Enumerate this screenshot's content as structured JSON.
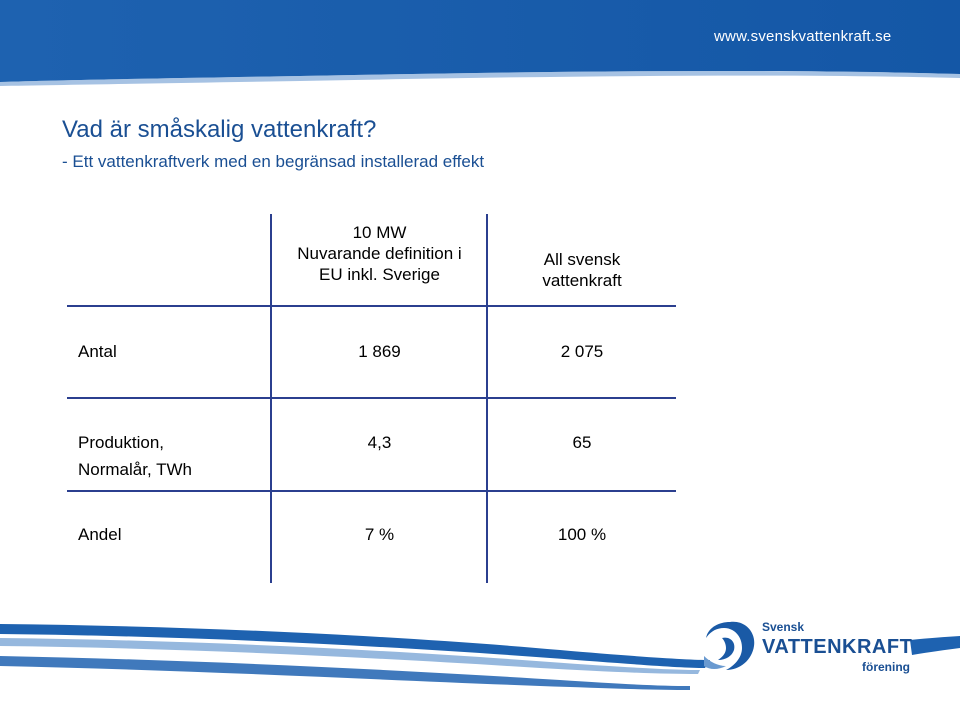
{
  "header": {
    "url": "www.svenskvattenkraft.se"
  },
  "title": "Vad är småskalig vattenkraft?",
  "subtitle": "- Ett vattenkraftverk med en begränsad installerad effekt",
  "table": {
    "columns": [
      {
        "line1": "10 MW",
        "line2": "Nuvarande definition i",
        "line3": "EU inkl. Sverige"
      },
      {
        "line1": "All svensk",
        "line2": "vattenkraft"
      }
    ],
    "rows": [
      {
        "label_line1": "Antal",
        "label_line2": "",
        "values": [
          "1 869",
          "2 075"
        ]
      },
      {
        "label_line1": "Produktion,",
        "label_line2": "Normalår, TWh",
        "values": [
          "4,3",
          "65"
        ]
      },
      {
        "label_line1": "Andel",
        "label_line2": "",
        "values": [
          "7 %",
          "100 %"
        ]
      }
    ]
  },
  "logo": {
    "line1": "Svensk",
    "line2": "VATTENKRAFT",
    "line3": "förening"
  },
  "colors": {
    "brand_blue": "#1a5aa6",
    "text_blue": "#1a4f93",
    "rule_blue": "#2b3f8f"
  }
}
